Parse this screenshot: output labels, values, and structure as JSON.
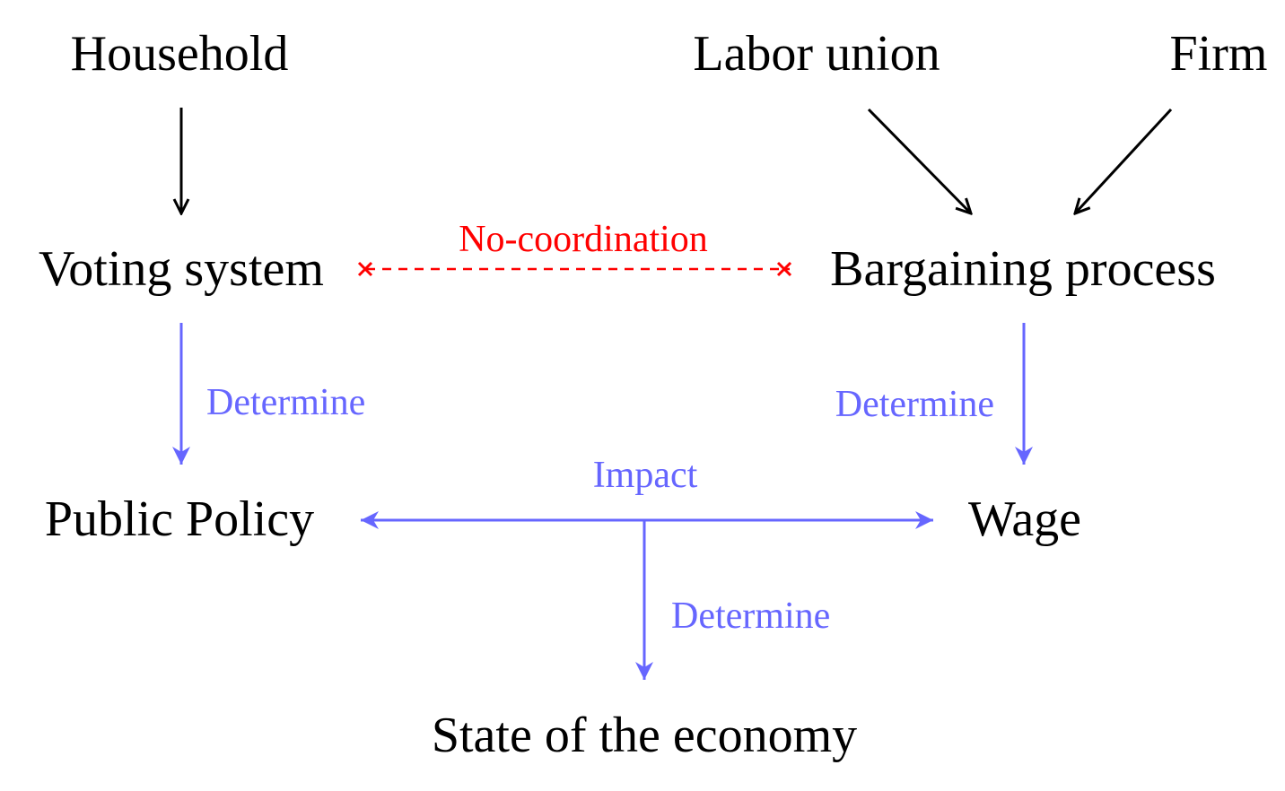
{
  "colors": {
    "text": "#000000",
    "arrow_black": "#000000",
    "arrow_blue": "#6666ff",
    "no_coordination": "#ff0000"
  },
  "nodes": {
    "household": "Household",
    "labor_union": "Labor union",
    "firm": "Firm",
    "voting_system": "Voting system",
    "bargaining_process": "Bargaining process",
    "public_policy": "Public Policy",
    "wage": "Wage",
    "state_of_economy": "State of the economy"
  },
  "edge_labels": {
    "no_coordination": "No-coordination",
    "determine_policy": "Determine",
    "determine_wage": "Determine",
    "impact": "Impact",
    "determine_economy": "Determine"
  }
}
